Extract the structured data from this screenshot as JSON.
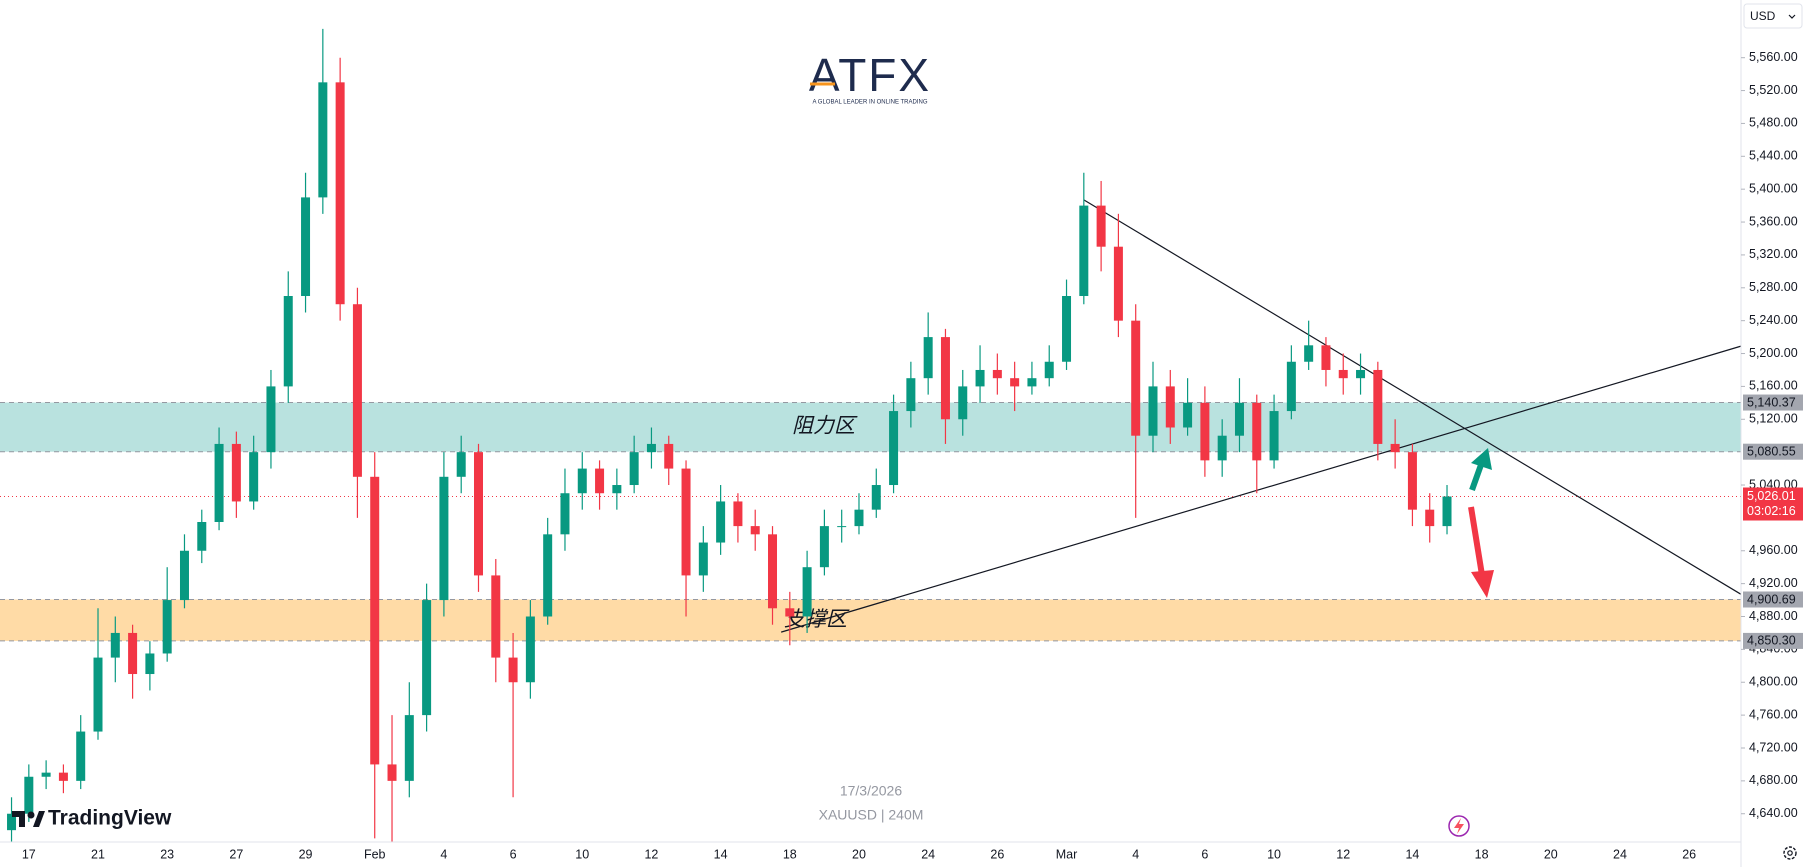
{
  "chart_data": {
    "type": "candlestick",
    "logo": "ATFX",
    "logo_tagline": "A GLOBAL LEADER IN ONLINE TRADING",
    "platform": "TradingView",
    "currency": "USD",
    "date": "17/3/2026",
    "symbol": "XAUUSD | 240M",
    "up_color": "#089981",
    "down_color": "#f23645",
    "categories": [
      null,
      "17",
      null,
      null,
      null,
      "21",
      null,
      null,
      null,
      "23",
      null,
      null,
      null,
      "27",
      null,
      null,
      null,
      "29",
      null,
      null,
      null,
      "Feb",
      null,
      null,
      null,
      "4",
      null,
      null,
      null,
      "6",
      null,
      null,
      null,
      "10",
      null,
      null,
      null,
      "12",
      null,
      null,
      null,
      "14",
      null,
      null,
      null,
      "18",
      null,
      null,
      null,
      "20",
      null,
      null,
      null,
      "24",
      null,
      null,
      null,
      "26",
      null,
      null,
      null,
      "Mar",
      null,
      null,
      null,
      "4",
      null,
      null,
      null,
      "6",
      null,
      null,
      null,
      "10",
      null,
      null,
      null,
      "12",
      null,
      null,
      null,
      "14",
      null,
      null,
      null,
      "18",
      null,
      null,
      null,
      "20",
      null,
      null,
      null,
      "24",
      null,
      null,
      null,
      "26"
    ],
    "open": [
      4620,
      4640,
      4685,
      4690,
      4680,
      4740,
      4830,
      4860,
      4810,
      4835,
      4900,
      4960,
      4995,
      5090,
      5020,
      5080,
      5160,
      5270,
      5390,
      5530,
      5260,
      5050,
      4700,
      4680,
      4760,
      4900,
      5050,
      5080,
      4930,
      4830,
      4800,
      4880,
      4980,
      5030,
      5060,
      5030,
      5040,
      5080,
      5090,
      5060,
      4930,
      4970,
      5020,
      4990,
      4980,
      4890,
      4880,
      4940,
      4990,
      4990,
      5010,
      5040,
      5130,
      5170,
      5220,
      5120,
      5160,
      5180,
      5170,
      5160,
      5170,
      5190,
      5270,
      5380,
      5330,
      5240,
      5100,
      5160,
      5110,
      5140,
      5070,
      5100,
      5140,
      5070,
      5130,
      5190,
      5210,
      5180,
      5170,
      5180,
      5090,
      5080,
      5010,
      4990,
      null,
      null,
      null,
      null,
      null,
      null,
      null,
      null,
      null,
      null,
      null,
      null,
      null,
      null
    ],
    "high": [
      4660,
      4700,
      4705,
      4700,
      4760,
      4890,
      4880,
      4870,
      4850,
      4940,
      4980,
      5010,
      5110,
      5105,
      5100,
      5180,
      5300,
      5420,
      5595,
      5560,
      5280,
      5080,
      4760,
      4800,
      4920,
      5080,
      5100,
      5090,
      4950,
      4860,
      4900,
      5000,
      5060,
      5080,
      5070,
      5060,
      5100,
      5110,
      5100,
      5070,
      4990,
      5040,
      5030,
      5010,
      4990,
      4910,
      4960,
      5010,
      5010,
      5030,
      5060,
      5150,
      5190,
      5250,
      5230,
      5180,
      5210,
      5200,
      5190,
      5190,
      5210,
      5290,
      5420,
      5410,
      5370,
      5260,
      5190,
      5180,
      5170,
      5160,
      5120,
      5170,
      5150,
      5150,
      5210,
      5240,
      5220,
      5200,
      5200,
      5190,
      5120,
      5090,
      5030,
      5040,
      null,
      null,
      null,
      null,
      null,
      null,
      null,
      null,
      null,
      null,
      null,
      null,
      null,
      null
    ],
    "low": [
      4605,
      4630,
      4670,
      4665,
      4670,
      4730,
      4800,
      4780,
      4790,
      4825,
      4890,
      4945,
      4985,
      5000,
      5010,
      5060,
      5140,
      5250,
      5370,
      5240,
      5000,
      4610,
      4605,
      4660,
      4740,
      4880,
      5030,
      4910,
      4800,
      4660,
      4780,
      4870,
      4960,
      5010,
      5010,
      5010,
      5030,
      5060,
      5040,
      4880,
      4910,
      4955,
      4970,
      4960,
      4870,
      4845,
      4860,
      4930,
      4970,
      4980,
      5000,
      5030,
      5110,
      5150,
      5090,
      5100,
      5140,
      5150,
      5130,
      5150,
      5160,
      5180,
      5260,
      5300,
      5220,
      5000,
      5080,
      5090,
      5100,
      5050,
      5050,
      5080,
      5030,
      5060,
      5120,
      5180,
      5160,
      5150,
      5150,
      5070,
      5060,
      4990,
      4970,
      4980,
      null,
      null,
      null,
      null,
      null,
      null,
      null,
      null,
      null,
      null,
      null,
      null,
      null,
      null
    ],
    "close": [
      4640,
      4685,
      4690,
      4680,
      4740,
      4830,
      4860,
      4810,
      4835,
      4900,
      4960,
      4995,
      5090,
      5020,
      5080,
      5160,
      5270,
      5390,
      5530,
      5260,
      5050,
      4700,
      4680,
      4760,
      4900,
      5050,
      5080,
      4930,
      4830,
      4800,
      4880,
      4980,
      5030,
      5060,
      5030,
      5040,
      5080,
      5090,
      5060,
      4930,
      4970,
      5020,
      4990,
      4980,
      4890,
      4880,
      4940,
      4990,
      4990,
      5010,
      5040,
      5130,
      5170,
      5220,
      5120,
      5160,
      5180,
      5170,
      5160,
      5170,
      5190,
      5270,
      5380,
      5330,
      5240,
      5100,
      5160,
      5110,
      5140,
      5070,
      5100,
      5140,
      5070,
      5130,
      5190,
      5210,
      5180,
      5170,
      5180,
      5090,
      5080,
      5010,
      4990,
      5026.01,
      null,
      null,
      null,
      null,
      null,
      null,
      null,
      null,
      null,
      null,
      null,
      null,
      null,
      null
    ],
    "ylim": [
      4605.6,
      5630.2
    ],
    "yticks": [
      {
        "value": 5560,
        "label": "5,560.00"
      },
      {
        "value": 5520,
        "label": "5,520.00"
      },
      {
        "value": 5480,
        "label": "5,480.00"
      },
      {
        "value": 5440,
        "label": "5,440.00"
      },
      {
        "value": 5400,
        "label": "5,400.00"
      },
      {
        "value": 5360,
        "label": "5,360.00"
      },
      {
        "value": 5320,
        "label": "5,320.00"
      },
      {
        "value": 5280,
        "label": "5,280.00"
      },
      {
        "value": 5240,
        "label": "5,240.00"
      },
      {
        "value": 5200,
        "label": "5,200.00"
      },
      {
        "value": 5160,
        "label": "5,160.00"
      },
      {
        "value": 5120,
        "label": "5,120.00"
      },
      {
        "value": 5040,
        "label": "5,040.00"
      },
      {
        "value": 4960,
        "label": "4,960.00"
      },
      {
        "value": 4920,
        "label": "4,920.00"
      },
      {
        "value": 4880,
        "label": "4,880.00"
      },
      {
        "value": 4840,
        "label": "4,840.00"
      },
      {
        "value": 4800,
        "label": "4,800.00"
      },
      {
        "value": 4760,
        "label": "4,760.00"
      },
      {
        "value": 4720,
        "label": "4,720.00"
      },
      {
        "value": 4680,
        "label": "4,680.00"
      },
      {
        "value": 4640,
        "label": "4,640.00"
      }
    ],
    "grid": false,
    "zones": [
      {
        "name": "阻力区",
        "low": 5080.55,
        "high": 5140.37,
        "low_label": "5,080.55",
        "high_label": "5,140.37",
        "color": "rgba(128,203,196,0.55)"
      },
      {
        "name": "支撑区",
        "low": 4850.3,
        "high": 4900.69,
        "low_label": "4,850.30",
        "high_label": "4,900.69",
        "color": "rgba(255,183,77,0.5)"
      }
    ],
    "current_price": {
      "value": 5026.01,
      "label": "5,026.01",
      "countdown": "03:02:16"
    },
    "trendlines": [
      {
        "x": [
          62,
          100
        ],
        "y": [
          5387,
          4907
        ]
      },
      {
        "x": [
          44.5,
          100
        ],
        "y": [
          4861,
          5209
        ]
      }
    ]
  }
}
